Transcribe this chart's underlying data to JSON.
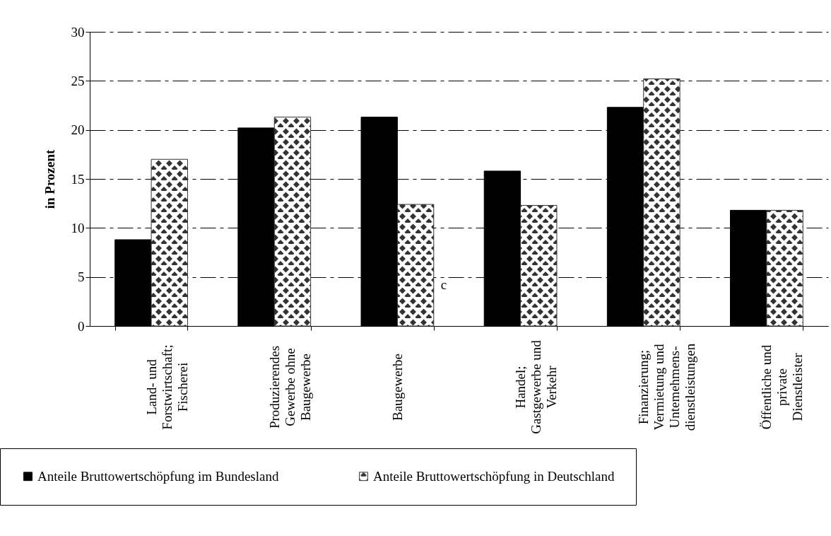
{
  "chart_data": {
    "type": "bar",
    "ylabel": "in Prozent",
    "categories": [
      "Land- und Forstwirtschaft; Fischerei",
      "Produzierendes Gewerbe ohne Baugewerbe",
      "Baugewerbe",
      "Handel; Gastgewerbe und Verkehr",
      "Finanzierung; Vermietung und Untemehmens-dienstleistungen",
      "Öffentliche und private Dienstleister"
    ],
    "series": [
      {
        "name": "Anteile Bruttowertschöpfung im Bundesland",
        "color": "#000000",
        "values": [
          8.8,
          20.2,
          21.3,
          15.8,
          22.3,
          11.8
        ]
      },
      {
        "name": "Anteile Bruttowertschöpfung in Deutschland",
        "color": "#333333",
        "values": [
          17.0,
          21.3,
          12.4,
          12.3,
          25.2,
          11.8
        ]
      }
    ],
    "ylim": [
      0,
      30
    ],
    "yticks": [
      0,
      5,
      10,
      15,
      20,
      25,
      30
    ],
    "grid": "y",
    "legend": "bottom",
    "annotations": [
      "c"
    ]
  }
}
